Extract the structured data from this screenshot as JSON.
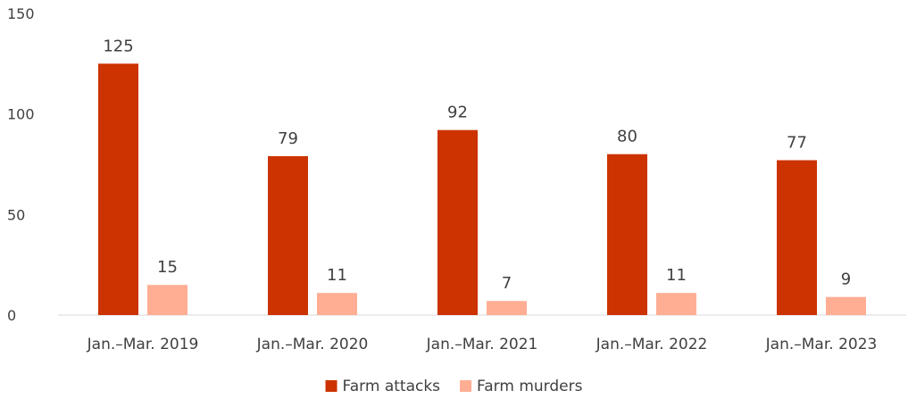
{
  "chart_data": {
    "type": "bar",
    "title": "",
    "xlabel": "",
    "ylabel": "",
    "categories": [
      "Jan.–Mar. 2019",
      "Jan.–Mar. 2020",
      "Jan.–Mar. 2021",
      "Jan.–Mar. 2022",
      "Jan.–Mar. 2023"
    ],
    "series": [
      {
        "name": "Farm attacks",
        "values": [
          125,
          79,
          92,
          80,
          77
        ],
        "color": "#CC3300"
      },
      {
        "name": "Farm murders",
        "values": [
          15,
          11,
          7,
          11,
          9
        ],
        "color": "#FFAE94"
      }
    ],
    "ylim": [
      0,
      150
    ],
    "yticks": [
      0,
      50,
      100,
      150
    ],
    "grid": false,
    "legend_position": "bottom",
    "data_labels": true
  }
}
